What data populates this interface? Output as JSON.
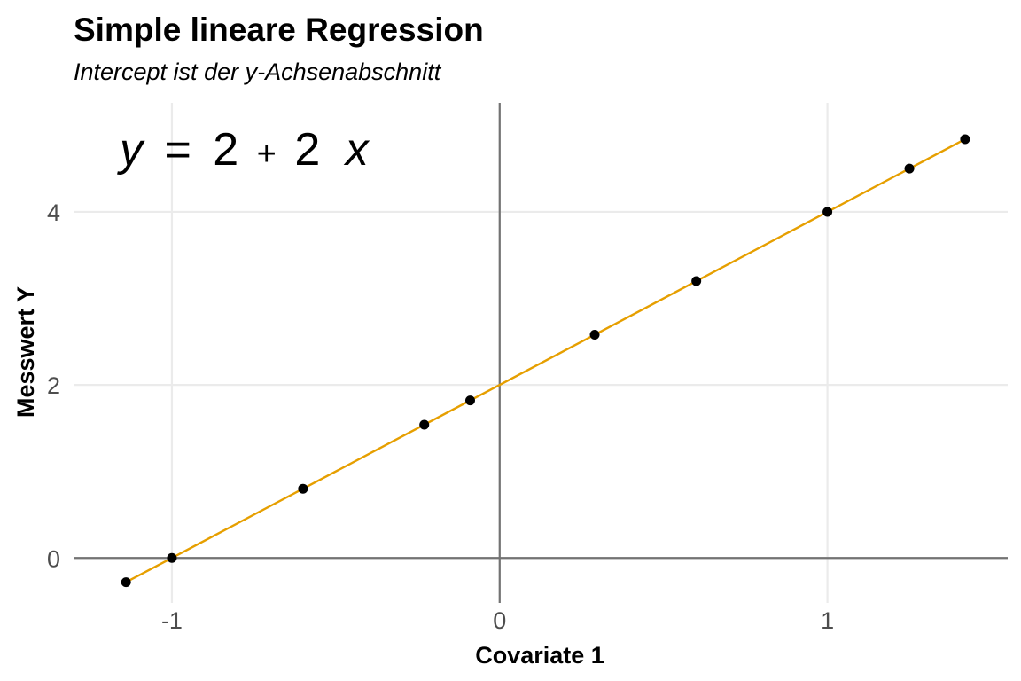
{
  "chart_data": {
    "type": "scatter",
    "title": "Simple lineare Regression",
    "subtitle": "Intercept ist der y-Achsenabschnitt",
    "xlabel": "Covariate 1",
    "ylabel": "Messwert Y",
    "xlim": [
      -1.3,
      1.55
    ],
    "ylim": [
      -0.52,
      5.26
    ],
    "x_ticks": [
      -1,
      0,
      1
    ],
    "x_tick_labels": [
      "-1",
      "0",
      "1"
    ],
    "y_ticks": [
      0,
      2,
      4
    ],
    "y_tick_labels": [
      "0",
      "2",
      "4"
    ],
    "grid": true,
    "reference_lines": {
      "x": 0,
      "y": 0,
      "color": "#737373"
    },
    "points": {
      "color": "#000000",
      "x": [
        -1.14,
        -1.0,
        -0.6,
        -0.23,
        -0.09,
        0.29,
        0.6,
        1.0,
        1.25,
        1.42
      ],
      "y": [
        -0.28,
        0.0,
        0.8,
        1.54,
        1.82,
        2.58,
        3.2,
        4.0,
        4.5,
        4.84
      ]
    },
    "regression_line": {
      "intercept": 2,
      "slope": 2,
      "x_range": [
        -1.14,
        1.42
      ],
      "color": "#E69F00"
    },
    "annotation": {
      "parts": [
        "y",
        "=",
        "2",
        "+",
        "2",
        "x"
      ]
    }
  }
}
